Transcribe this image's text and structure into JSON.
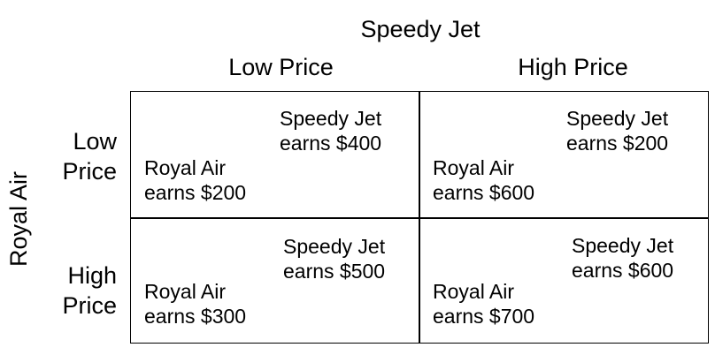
{
  "column_player": "Speedy Jet",
  "row_player": "Royal Air",
  "column_strategies": [
    "Low Price",
    "High Price"
  ],
  "row_strategies": [
    {
      "line1": "Low",
      "line2": "Price"
    },
    {
      "line1": "High",
      "line2": "Price"
    }
  ],
  "cells": [
    {
      "speedy_line1": "Speedy Jet",
      "speedy_line2": "earns $400",
      "royal_line1": "Royal Air",
      "royal_line2": "earns $200"
    },
    {
      "speedy_line1": "Speedy Jet",
      "speedy_line2": "earns $200",
      "royal_line1": "Royal Air",
      "royal_line2": "earns $600"
    },
    {
      "speedy_line1": "Speedy Jet",
      "speedy_line2": "earns $500",
      "royal_line1": "Royal Air",
      "royal_line2": "earns $300"
    },
    {
      "speedy_line1": "Speedy Jet",
      "speedy_line2": "earns $600",
      "royal_line1": "Royal Air",
      "royal_line2": "earns $700"
    }
  ]
}
